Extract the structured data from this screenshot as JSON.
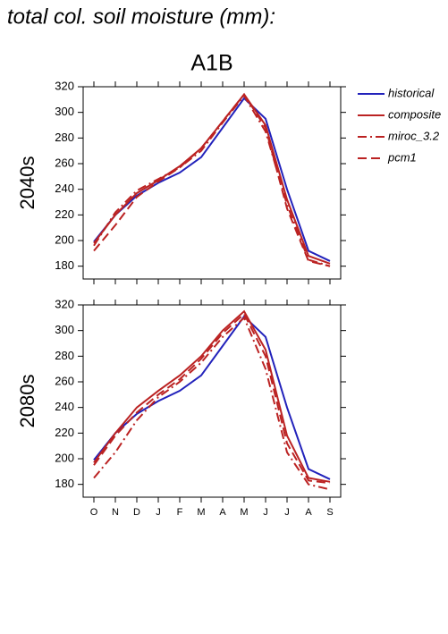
{
  "title": "total col. soil moisture (mm):",
  "panel_title": "A1B",
  "chart_data": [
    {
      "type": "line",
      "row_label": "2040s",
      "legend": "right",
      "ylim": [
        170,
        320
      ],
      "yticks": [
        180,
        200,
        220,
        240,
        260,
        280,
        300,
        320
      ],
      "series": [
        {
          "name": "historical",
          "color": "#2222bb",
          "style": "solid",
          "values": [
            199,
            220,
            235,
            245,
            253,
            265,
            288,
            311,
            295,
            240,
            192,
            184
          ]
        },
        {
          "name": "composite",
          "color": "#bb2222",
          "style": "solid",
          "values": [
            198,
            220,
            237,
            247,
            258,
            272,
            293,
            314,
            290,
            232,
            188,
            182
          ]
        },
        {
          "name": "miroc_3.2",
          "color": "#bb2222",
          "style": "dashdot",
          "values": [
            196,
            222,
            239,
            248,
            257,
            270,
            292,
            313,
            285,
            228,
            185,
            180
          ]
        },
        {
          "name": "pcm1",
          "color": "#bb2222",
          "style": "dashed",
          "values": [
            192,
            212,
            234,
            246,
            257,
            272,
            293,
            314,
            288,
            225,
            184,
            180
          ]
        }
      ]
    },
    {
      "type": "line",
      "row_label": "2080s",
      "categories": [
        "O",
        "N",
        "D",
        "J",
        "F",
        "M",
        "A",
        "M",
        "J",
        "J",
        "A",
        "S"
      ],
      "ylim": [
        170,
        320
      ],
      "yticks": [
        180,
        200,
        220,
        240,
        260,
        280,
        300,
        320
      ],
      "series": [
        {
          "name": "historical",
          "color": "#2222bb",
          "style": "solid",
          "values": [
            199,
            220,
            235,
            245,
            253,
            265,
            288,
            311,
            295,
            240,
            192,
            184
          ]
        },
        {
          "name": "composite",
          "color": "#bb2222",
          "style": "solid",
          "values": [
            197,
            220,
            240,
            253,
            265,
            280,
            300,
            315,
            285,
            218,
            185,
            182
          ]
        },
        {
          "name": "miroc_3.2",
          "color": "#bb2222",
          "style": "dashdot",
          "values": [
            185,
            205,
            230,
            248,
            260,
            275,
            295,
            310,
            270,
            205,
            180,
            176
          ]
        },
        {
          "name": "pcm1",
          "color": "#bb2222",
          "style": "dashed",
          "values": [
            195,
            218,
            236,
            250,
            262,
            278,
            298,
            313,
            280,
            212,
            183,
            181
          ]
        }
      ]
    }
  ]
}
